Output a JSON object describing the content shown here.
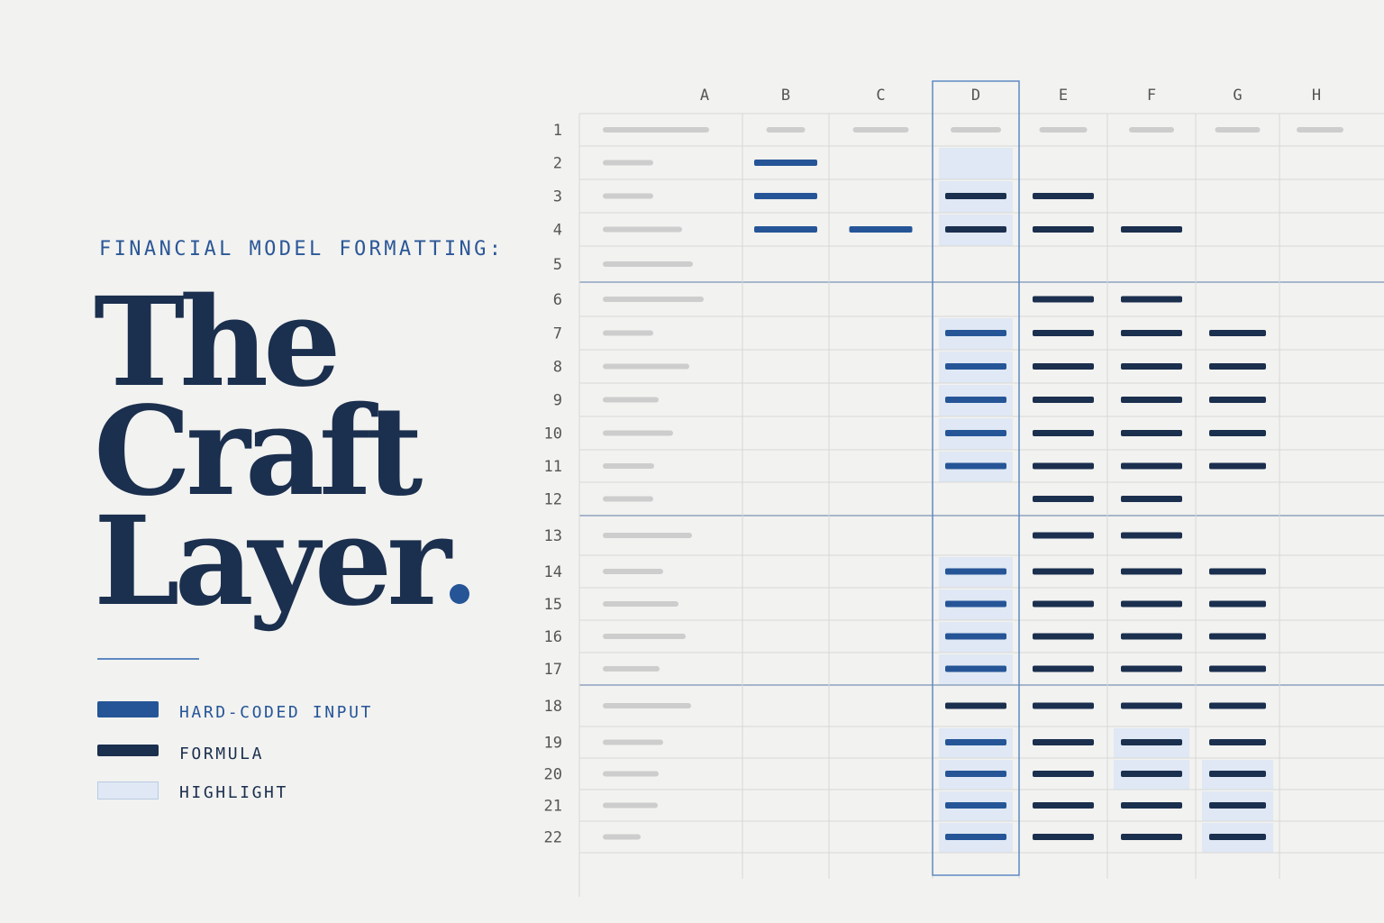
{
  "header": {
    "kicker": "FINANCIAL MODEL FORMATTING:"
  },
  "title": {
    "lines": [
      "The",
      "Craft",
      "Layer."
    ]
  },
  "legend": [
    {
      "label": "HARD-CODED INPUT",
      "color": "#255597",
      "type": "bar"
    },
    {
      "label": "FORMULA",
      "color": "#1b2f4e",
      "type": "bar"
    },
    {
      "label": "HIGHLIGHT",
      "color": "#dfe8f4",
      "type": "box"
    }
  ],
  "colors": {
    "accent": "#2b5797",
    "input": "#255597",
    "formula": "#1b2f4e",
    "highlight": "#dfe8f4",
    "label_placeholder": "#cdcdcd",
    "grid": "#d8d8d8",
    "section_divider": "#8ea2c0",
    "selected_column": "#5e89c2"
  },
  "sheet": {
    "columns": [
      "A",
      "B",
      "C",
      "D",
      "E",
      "F",
      "G",
      "H"
    ],
    "selected_column": "D",
    "rows": [
      "1",
      "2",
      "3",
      "4",
      "5",
      "6",
      "7",
      "8",
      "9",
      "10",
      "11",
      "12",
      "13",
      "14",
      "15",
      "16",
      "17",
      "18",
      "19",
      "20",
      "21",
      "22"
    ],
    "header_row": 1,
    "section_break_after_rows": [
      5,
      12,
      17
    ],
    "cells": [
      {
        "row": 2,
        "B": "input",
        "D": "highlight"
      },
      {
        "row": 3,
        "B": "input",
        "D": "formula",
        "E": "formula"
      },
      {
        "row": 4,
        "B": "input",
        "C": "input",
        "D": "formula",
        "E": "formula",
        "F": "formula"
      },
      {
        "row": 5
      },
      {
        "row": 6,
        "E": "formula",
        "F": "formula"
      },
      {
        "row": 7,
        "D": "input",
        "E": "formula",
        "F": "formula",
        "G": "formula"
      },
      {
        "row": 8,
        "D": "input",
        "E": "formula",
        "F": "formula",
        "G": "formula"
      },
      {
        "row": 9,
        "D": "input",
        "E": "formula",
        "F": "formula",
        "G": "formula"
      },
      {
        "row": 10,
        "D": "input",
        "E": "formula",
        "F": "formula",
        "G": "formula"
      },
      {
        "row": 11,
        "D": "input",
        "E": "formula",
        "F": "formula",
        "G": "formula"
      },
      {
        "row": 12,
        "E": "formula",
        "F": "formula"
      },
      {
        "row": 13,
        "E": "formula",
        "F": "formula"
      },
      {
        "row": 14,
        "D": "input",
        "E": "formula",
        "F": "formula",
        "G": "formula"
      },
      {
        "row": 15,
        "D": "input",
        "E": "formula",
        "F": "formula",
        "G": "formula"
      },
      {
        "row": 16,
        "D": "input",
        "E": "formula",
        "F": "formula",
        "G": "formula"
      },
      {
        "row": 17,
        "D": "input",
        "E": "formula",
        "F": "formula",
        "G": "formula"
      },
      {
        "row": 18,
        "D": "formula",
        "E": "formula",
        "F": "formula",
        "G": "formula"
      },
      {
        "row": 19,
        "D": "input",
        "E": "formula",
        "F": "formula",
        "G": "formula"
      },
      {
        "row": 20,
        "D": "input",
        "E": "formula",
        "F": "formula",
        "G": "formula"
      },
      {
        "row": 21,
        "D": "input",
        "E": "formula",
        "F": "formula",
        "G": "formula"
      },
      {
        "row": 22,
        "D": "input",
        "E": "formula",
        "F": "formula",
        "G": "formula"
      }
    ],
    "highlighted_cells": [
      [
        "D",
        2
      ],
      [
        "D",
        3
      ],
      [
        "D",
        4
      ],
      [
        "D",
        7
      ],
      [
        "D",
        8
      ],
      [
        "D",
        9
      ],
      [
        "D",
        10
      ],
      [
        "D",
        11
      ],
      [
        "D",
        14
      ],
      [
        "D",
        15
      ],
      [
        "D",
        16
      ],
      [
        "D",
        17
      ],
      [
        "D",
        19
      ],
      [
        "D",
        20
      ],
      [
        "D",
        21
      ],
      [
        "D",
        22
      ],
      [
        "F",
        19
      ],
      [
        "F",
        20
      ],
      [
        "G",
        20
      ],
      [
        "G",
        21
      ],
      [
        "G",
        22
      ]
    ]
  }
}
